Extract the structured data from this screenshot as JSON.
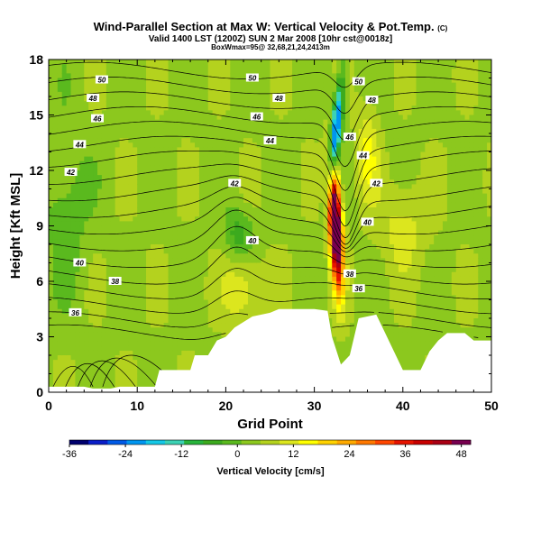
{
  "header": {
    "title": "Wind-Parallel Section at Max W: Vertical Velocity & Pot.Temp.",
    "title_suffix": "(C)",
    "valid_line": "Valid 1400 LST (1200Z) SUN 2 Mar 2008 [10hr cst@0018z]",
    "box_line": "BoxWmax=95@ 32,68,21,24,2413m"
  },
  "chart_data": {
    "type": "heatmap",
    "xlabel": "Grid Point",
    "ylabel": "Height [Kft MSL]",
    "xlim": [
      0,
      50
    ],
    "ylim": [
      0,
      18
    ],
    "x_ticks": [
      "0",
      "10",
      "20",
      "30",
      "40",
      "50"
    ],
    "y_ticks": [
      "0",
      "3",
      "6",
      "9",
      "12",
      "15",
      "18"
    ],
    "colorbar": {
      "title": "Vertical Velocity [cm/s]",
      "min": -36,
      "max": 50,
      "tick_labels": [
        "-36",
        "-24",
        "-12",
        "0",
        "12",
        "24",
        "36",
        "48"
      ],
      "colors": [
        "#00006e",
        "#0a1ec8",
        "#005ae6",
        "#0096f0",
        "#14c8e6",
        "#3cd2b4",
        "#28b43c",
        "#3caa1e",
        "#5ab91e",
        "#8cc81e",
        "#b4d21e",
        "#dce61e",
        "#ffff00",
        "#ffd200",
        "#ffaa00",
        "#ff7800",
        "#ff4600",
        "#e61400",
        "#c80000",
        "#aa0014",
        "#780050"
      ]
    },
    "contour_labels": {
      "theta_values": [
        36,
        38,
        40,
        42,
        44,
        46,
        48,
        50
      ],
      "printed": [
        "50",
        "48",
        "46",
        "44",
        "42",
        "40",
        "38",
        "36",
        "50",
        "48",
        "46",
        "44",
        "42",
        "40",
        "50",
        "48",
        "46",
        "44",
        "42",
        "40",
        "38",
        "36"
      ]
    },
    "terrain": {
      "x": [
        0,
        2,
        4,
        5,
        7,
        8,
        10,
        12,
        12.5,
        16,
        16.5,
        18,
        19,
        20,
        21,
        22,
        23,
        25,
        26,
        27,
        29,
        30,
        31.5,
        32,
        33,
        34,
        35,
        37,
        38,
        39,
        40,
        41,
        42,
        43,
        44,
        45,
        47,
        48,
        50
      ],
      "height": [
        0.3,
        0.3,
        0.3,
        0.2,
        0.2,
        0.3,
        0.3,
        0.3,
        1.2,
        1.2,
        2.0,
        2.0,
        2.8,
        3.0,
        3.5,
        3.8,
        4.1,
        4.3,
        4.5,
        4.5,
        4.5,
        4.5,
        4.4,
        3.0,
        1.5,
        2.0,
        4.0,
        4.2,
        3.2,
        2.2,
        1.2,
        1.2,
        1.2,
        2.2,
        2.8,
        3.2,
        3.2,
        2.8,
        2.8
      ]
    }
  }
}
